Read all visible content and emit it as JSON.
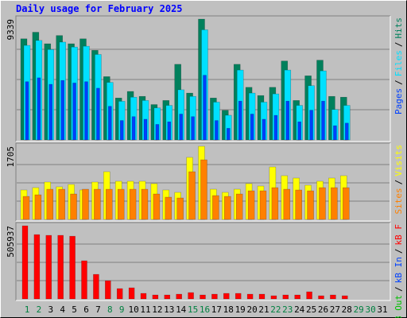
{
  "chart_data": [
    {
      "type": "bar",
      "title": "Daily usage for February 2025",
      "categories": [
        "1",
        "2",
        "3",
        "4",
        "5",
        "6",
        "7",
        "8",
        "9",
        "10",
        "11",
        "12",
        "13",
        "14",
        "15",
        "16",
        "17",
        "18",
        "19",
        "20",
        "21",
        "22",
        "23",
        "24",
        "25",
        "26",
        "27",
        "28",
        "29",
        "30",
        "31"
      ],
      "category_colors": [
        "#008040",
        "#008040",
        "#000000",
        "#000000",
        "#000000",
        "#000000",
        "#000000",
        "#008040",
        "#008040",
        "#000000",
        "#000000",
        "#000000",
        "#000000",
        "#000000",
        "#008040",
        "#008040",
        "#000000",
        "#000000",
        "#000000",
        "#000000",
        "#000000",
        "#008040",
        "#008040",
        "#000000",
        "#000000",
        "#000000",
        "#000000",
        "#000000",
        "#008040",
        "#008040",
        "#000000"
      ],
      "separator": "/",
      "ylim": [
        0,
        9339
      ],
      "yticks": [
        9339
      ],
      "series": [
        {
          "name": "Hits",
          "color": "#00805c",
          "values": [
            7815,
            8323,
            7433,
            8068,
            7433,
            7815,
            6925,
            4892,
            3240,
            3748,
            3367,
            2732,
            3050,
            5845,
            3621,
            9339,
            3240,
            2287,
            5845,
            4066,
            3431,
            4066,
            6099,
            3050,
            4956,
            6163,
            3367,
            3304,
            null,
            null,
            null
          ]
        },
        {
          "name": "Files",
          "color": "#00e0ff",
          "values": [
            7306,
            7687,
            6989,
            7560,
            7179,
            7242,
            6607,
            4447,
            2986,
            3304,
            3050,
            2478,
            2668,
            3875,
            3367,
            8513,
            2922,
            1906,
            5400,
            3621,
            2922,
            3558,
            5400,
            2668,
            4193,
            5337,
            2351,
            2668,
            null,
            null,
            null
          ]
        },
        {
          "name": "Pages",
          "color": "#0040ff",
          "values": [
            4500,
            4800,
            4300,
            4600,
            4400,
            4500,
            4000,
            2600,
            1500,
            1800,
            1600,
            1200,
            1400,
            2000,
            1800,
            5000,
            1500,
            900,
            3000,
            2000,
            1600,
            1900,
            3000,
            1400,
            2300,
            3000,
            1100,
            1300,
            null,
            null,
            null
          ]
        }
      ]
    },
    {
      "type": "bar",
      "ylim": [
        0,
        1705
      ],
      "yticks": [
        1705
      ],
      "series": [
        {
          "name": "Visits",
          "color": "#ffff00",
          "values": [
            686,
            741,
            871,
            760,
            815,
            686,
            871,
            1112,
            890,
            890,
            890,
            834,
            686,
            630,
            1446,
            1705,
            704,
            630,
            704,
            834,
            778,
            1223,
            1019,
            964,
            797,
            890,
            964,
            1019,
            null,
            null,
            null
          ]
        },
        {
          "name": "Sites",
          "color": "#ff8000",
          "values": [
            537,
            574,
            704,
            704,
            593,
            704,
            704,
            704,
            704,
            704,
            704,
            593,
            519,
            500,
            1112,
            1390,
            556,
            537,
            593,
            667,
            667,
            741,
            704,
            686,
            667,
            741,
            741,
            741,
            null,
            null,
            null
          ]
        }
      ]
    },
    {
      "type": "bar",
      "ylim": [
        0,
        505937
      ],
      "yticks": [
        505937
      ],
      "series": [
        {
          "name": "kB F",
          "color": "#ff0000",
          "values": [
            505937,
            445000,
            440000,
            440000,
            434000,
            264000,
            170000,
            126000,
            71500,
            77000,
            38500,
            27500,
            27500,
            33000,
            44000,
            27500,
            33000,
            38500,
            38500,
            33000,
            33000,
            22000,
            27500,
            27500,
            49500,
            22000,
            27500,
            22000,
            null,
            null,
            null
          ]
        }
      ],
      "legend_extra": [
        {
          "name": "kB In",
          "color": "#0040ff"
        },
        {
          "name": "kB Out",
          "color": "#00c000"
        }
      ]
    }
  ]
}
